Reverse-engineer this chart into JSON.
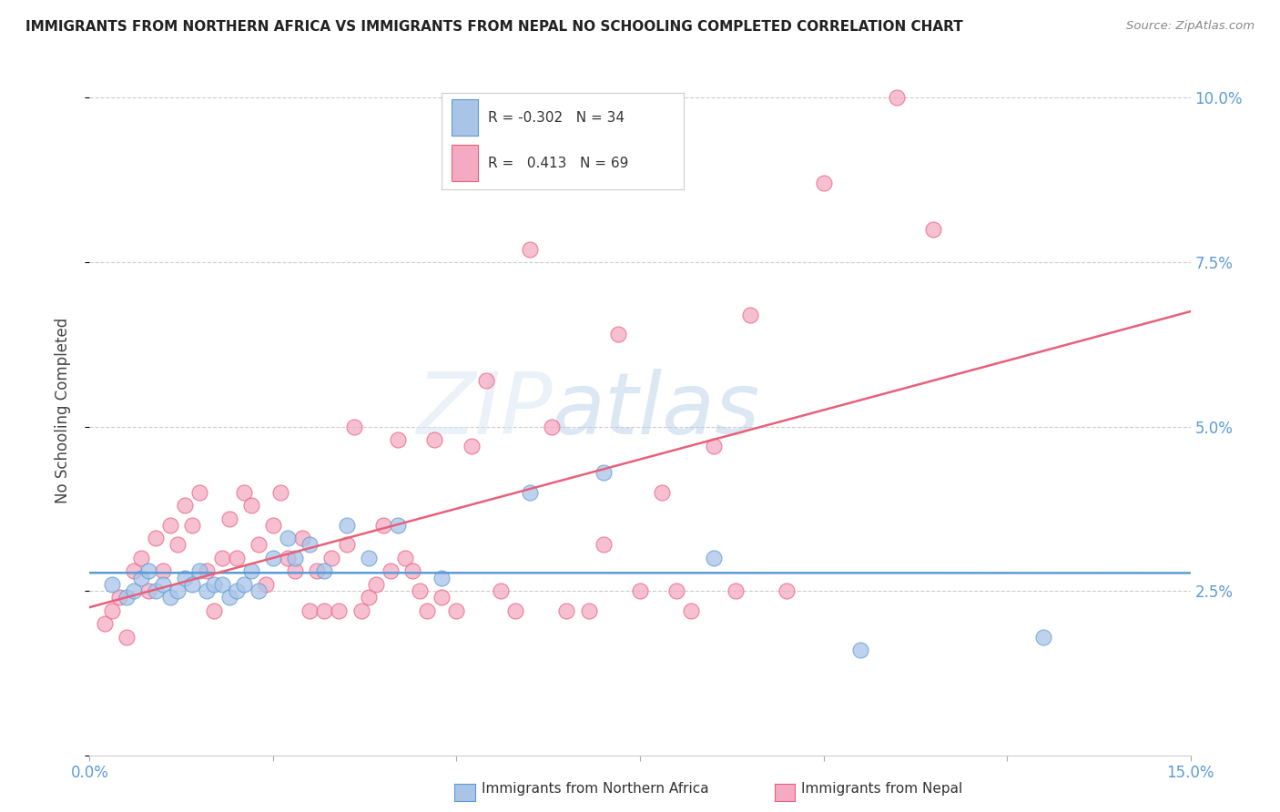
{
  "title": "IMMIGRANTS FROM NORTHERN AFRICA VS IMMIGRANTS FROM NEPAL NO SCHOOLING COMPLETED CORRELATION CHART",
  "source": "Source: ZipAtlas.com",
  "ylabel": "No Schooling Completed",
  "xlim": [
    0.0,
    0.15
  ],
  "ylim": [
    0.0,
    0.105
  ],
  "blue_R": "-0.302",
  "blue_N": "34",
  "pink_R": "0.413",
  "pink_N": "69",
  "blue_color": "#aac4e8",
  "pink_color": "#f5aac4",
  "blue_line_color": "#5b9bd5",
  "pink_line_color": "#e8607a",
  "watermark_zip": "ZIP",
  "watermark_atlas": "atlas",
  "blue_scatter_x": [
    0.003,
    0.005,
    0.006,
    0.007,
    0.008,
    0.009,
    0.01,
    0.011,
    0.012,
    0.013,
    0.014,
    0.015,
    0.016,
    0.017,
    0.018,
    0.019,
    0.02,
    0.021,
    0.022,
    0.023,
    0.025,
    0.027,
    0.028,
    0.03,
    0.032,
    0.035,
    0.038,
    0.042,
    0.048,
    0.06,
    0.07,
    0.085,
    0.105,
    0.13
  ],
  "blue_scatter_y": [
    0.026,
    0.024,
    0.025,
    0.027,
    0.028,
    0.025,
    0.026,
    0.024,
    0.025,
    0.027,
    0.026,
    0.028,
    0.025,
    0.026,
    0.026,
    0.024,
    0.025,
    0.026,
    0.028,
    0.025,
    0.03,
    0.033,
    0.03,
    0.032,
    0.028,
    0.035,
    0.03,
    0.035,
    0.027,
    0.04,
    0.043,
    0.03,
    0.016,
    0.018
  ],
  "pink_scatter_x": [
    0.002,
    0.003,
    0.004,
    0.005,
    0.006,
    0.007,
    0.008,
    0.009,
    0.01,
    0.011,
    0.012,
    0.013,
    0.014,
    0.015,
    0.016,
    0.017,
    0.018,
    0.019,
    0.02,
    0.021,
    0.022,
    0.023,
    0.024,
    0.025,
    0.026,
    0.027,
    0.028,
    0.029,
    0.03,
    0.031,
    0.032,
    0.033,
    0.034,
    0.035,
    0.036,
    0.037,
    0.038,
    0.039,
    0.04,
    0.041,
    0.042,
    0.043,
    0.044,
    0.045,
    0.046,
    0.047,
    0.048,
    0.05,
    0.052,
    0.054,
    0.056,
    0.058,
    0.06,
    0.063,
    0.065,
    0.068,
    0.07,
    0.072,
    0.075,
    0.078,
    0.08,
    0.082,
    0.085,
    0.088,
    0.09,
    0.095,
    0.1,
    0.11,
    0.115
  ],
  "pink_scatter_y": [
    0.02,
    0.022,
    0.024,
    0.018,
    0.028,
    0.03,
    0.025,
    0.033,
    0.028,
    0.035,
    0.032,
    0.038,
    0.035,
    0.04,
    0.028,
    0.022,
    0.03,
    0.036,
    0.03,
    0.04,
    0.038,
    0.032,
    0.026,
    0.035,
    0.04,
    0.03,
    0.028,
    0.033,
    0.022,
    0.028,
    0.022,
    0.03,
    0.022,
    0.032,
    0.05,
    0.022,
    0.024,
    0.026,
    0.035,
    0.028,
    0.048,
    0.03,
    0.028,
    0.025,
    0.022,
    0.048,
    0.024,
    0.022,
    0.047,
    0.057,
    0.025,
    0.022,
    0.077,
    0.05,
    0.022,
    0.022,
    0.032,
    0.064,
    0.025,
    0.04,
    0.025,
    0.022,
    0.047,
    0.025,
    0.067,
    0.025,
    0.087,
    0.1,
    0.08
  ]
}
